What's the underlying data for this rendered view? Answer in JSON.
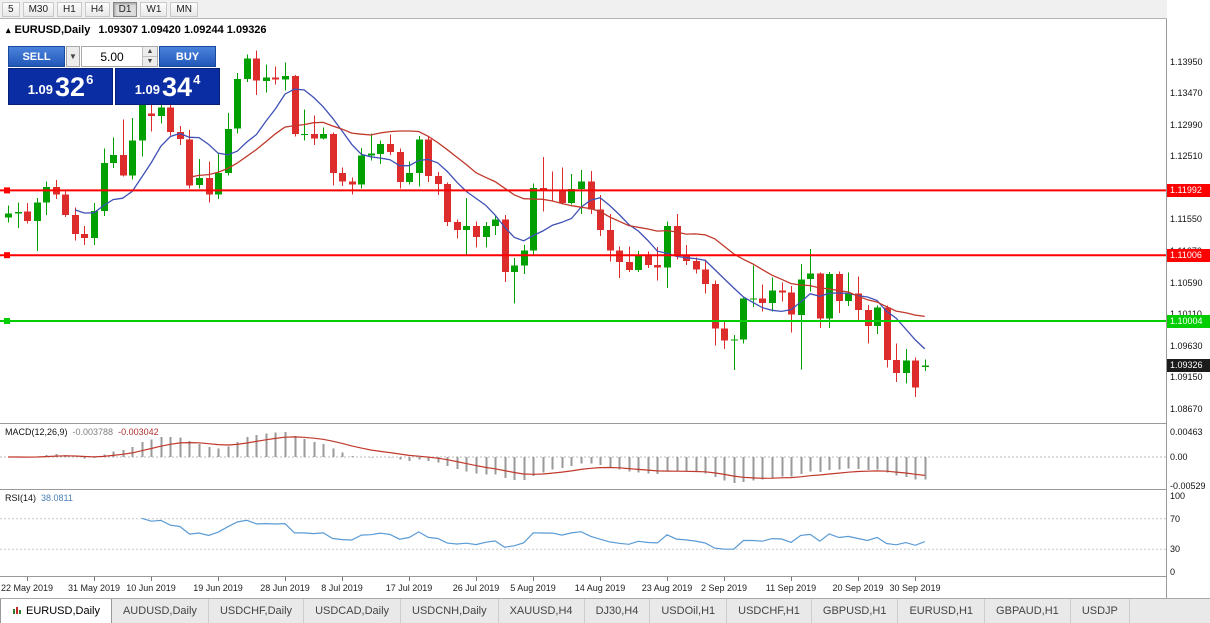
{
  "toolbar": {
    "timeframes": [
      "5",
      "M30",
      "H1",
      "H4",
      "D1",
      "W1",
      "MN"
    ],
    "active": "D1"
  },
  "chart": {
    "collapse_arrow": "▴",
    "symbol_period": "EURUSD,Daily",
    "ohlc": "1.09307 1.09420 1.09244 1.09326"
  },
  "trade_panel": {
    "sell_label": "SELL",
    "buy_label": "BUY",
    "volume": "5.00",
    "sell_price_base": "1.09",
    "sell_price_pips": "32",
    "sell_price_pipette": "6",
    "buy_price_base": "1.09",
    "buy_price_pips": "34",
    "buy_price_pipette": "4",
    "button_color": "#2a65c7",
    "panel_color": "#0b2da3"
  },
  "macd": {
    "name": "MACD(12,26,9)",
    "value1": "-0.003788",
    "value2": "-0.003042",
    "axis": [
      {
        "text": "0.00463",
        "value": 0.00463
      },
      {
        "text": "0.00",
        "value": 0
      },
      {
        "text": "-0.00529",
        "value": -0.00529
      }
    ]
  },
  "rsi": {
    "name": "RSI(14)",
    "value": "38.0811",
    "axis": [
      {
        "text": "100",
        "value": 100
      },
      {
        "text": "70",
        "value": 70
      },
      {
        "text": "30",
        "value": 30
      },
      {
        "text": "0",
        "value": 0
      }
    ]
  },
  "price_axis": {
    "labels": [
      "1.13950",
      "1.13470",
      "1.12990",
      "1.12510",
      "1.12030",
      "1.11550",
      "1.11070",
      "1.10590",
      "1.10110",
      "1.09630",
      "1.09150",
      "1.08670"
    ],
    "badges": [
      {
        "text": "1.11992",
        "bg": "#ff0000",
        "fg": "#ffffff"
      },
      {
        "text": "1.11006",
        "bg": "#ff0000",
        "fg": "#ffffff"
      },
      {
        "text": "1.10004",
        "bg": "#00ce00",
        "fg": "#ffffff"
      },
      {
        "text": "1.09326",
        "bg": "#1c1c1c",
        "fg": "#ffffff"
      }
    ]
  },
  "tabs": [
    "EURUSD,Daily",
    "AUDUSD,Daily",
    "USDCHF,Daily",
    "USDCAD,Daily",
    "USDCNH,Daily",
    "XAUUSD,H4",
    "DJ30,H4",
    "USDOil,H1",
    "USDCHF,H1",
    "GBPUSD,H1",
    "EURUSD,H1",
    "GBPAUD,H1",
    "USDJP"
  ],
  "chart_data": {
    "type": "candlestick",
    "symbol": "EURUSD",
    "timeframe": "Daily",
    "title": "EURUSD,Daily",
    "ylim": [
      1.0843,
      1.146
    ],
    "grid": false,
    "colors": {
      "bull": "#00a000",
      "bear": "#dd2c2c"
    },
    "moving_averages": [
      {
        "period": 8,
        "color": "#3f51b5"
      },
      {
        "period": 20,
        "color": "#c0392b"
      }
    ],
    "hlines": [
      {
        "price": 1.11992,
        "color": "#ff0000"
      },
      {
        "price": 1.11006,
        "color": "#ff0000"
      },
      {
        "price": 1.10004,
        "color": "#00ce00"
      }
    ],
    "current_price": 1.09326,
    "indicators": [
      {
        "name": "MACD",
        "params": [
          12,
          26,
          9
        ],
        "values": [
          -0.003788,
          -0.003042
        ],
        "range": [
          -0.00529,
          0.00463
        ]
      },
      {
        "name": "RSI",
        "params": [
          14
        ],
        "value": 38.0811,
        "levels": [
          30,
          70
        ],
        "range": [
          0,
          100
        ]
      }
    ],
    "date_ticks": [
      {
        "i": 2,
        "label": "22 May 2019"
      },
      {
        "i": 9,
        "label": "31 May 2019"
      },
      {
        "i": 15,
        "label": "10 Jun 2019"
      },
      {
        "i": 22,
        "label": "19 Jun 2019"
      },
      {
        "i": 29,
        "label": "28 Jun 2019"
      },
      {
        "i": 35,
        "label": "8 Jul 2019"
      },
      {
        "i": 42,
        "label": "17 Jul 2019"
      },
      {
        "i": 49,
        "label": "26 Jul 2019"
      },
      {
        "i": 55,
        "label": "5 Aug 2019"
      },
      {
        "i": 62,
        "label": "14 Aug 2019"
      },
      {
        "i": 69,
        "label": "23 Aug 2019"
      },
      {
        "i": 75,
        "label": "2 Sep 2019"
      },
      {
        "i": 82,
        "label": "11 Sep 2019"
      },
      {
        "i": 89,
        "label": "20 Sep 2019"
      },
      {
        "i": 95,
        "label": "30 Sep 2019"
      }
    ],
    "candles": [
      [
        1.1158,
        1.1176,
        1.115,
        1.1164
      ],
      [
        1.1164,
        1.1181,
        1.1142,
        1.1166
      ],
      [
        1.1167,
        1.118,
        1.1149,
        1.1153
      ],
      [
        1.1153,
        1.1188,
        1.1107,
        1.1181
      ],
      [
        1.1181,
        1.1213,
        1.1162,
        1.1204
      ],
      [
        1.1204,
        1.1215,
        1.1186,
        1.1193
      ],
      [
        1.1193,
        1.1199,
        1.1159,
        1.1162
      ],
      [
        1.1162,
        1.1173,
        1.1123,
        1.1133
      ],
      [
        1.1133,
        1.1145,
        1.1116,
        1.1127
      ],
      [
        1.1127,
        1.118,
        1.1116,
        1.1168
      ],
      [
        1.1168,
        1.1263,
        1.116,
        1.1241
      ],
      [
        1.1241,
        1.128,
        1.1233,
        1.1253
      ],
      [
        1.1253,
        1.1307,
        1.122,
        1.1222
      ],
      [
        1.1222,
        1.1309,
        1.1216,
        1.1275
      ],
      [
        1.1275,
        1.1348,
        1.1251,
        1.1334
      ],
      [
        1.1316,
        1.1332,
        1.1289,
        1.1312
      ],
      [
        1.1312,
        1.1338,
        1.1301,
        1.1325
      ],
      [
        1.1325,
        1.1344,
        1.1283,
        1.1288
      ],
      [
        1.1288,
        1.1297,
        1.1268,
        1.1277
      ],
      [
        1.1277,
        1.1291,
        1.1202,
        1.1207
      ],
      [
        1.1207,
        1.1247,
        1.1202,
        1.1218
      ],
      [
        1.1218,
        1.1243,
        1.1181,
        1.1193
      ],
      [
        1.1193,
        1.1255,
        1.1186,
        1.1226
      ],
      [
        1.1226,
        1.1317,
        1.1222,
        1.1293
      ],
      [
        1.1293,
        1.1378,
        1.1286,
        1.1369
      ],
      [
        1.1369,
        1.1406,
        1.1364,
        1.14
      ],
      [
        1.14,
        1.1412,
        1.1344,
        1.1366
      ],
      [
        1.1366,
        1.1391,
        1.1348,
        1.1371
      ],
      [
        1.1371,
        1.1388,
        1.136,
        1.1368
      ],
      [
        1.1368,
        1.1394,
        1.1351,
        1.1373
      ],
      [
        1.1373,
        1.1375,
        1.1281,
        1.1285
      ],
      [
        1.1285,
        1.1322,
        1.1275,
        1.1285
      ],
      [
        1.1285,
        1.1313,
        1.1268,
        1.1278
      ],
      [
        1.1278,
        1.1295,
        1.1277,
        1.1285
      ],
      [
        1.1285,
        1.1287,
        1.1207,
        1.1226
      ],
      [
        1.1226,
        1.1234,
        1.1206,
        1.1213
      ],
      [
        1.1213,
        1.1219,
        1.1193,
        1.1208
      ],
      [
        1.1208,
        1.1264,
        1.1202,
        1.1252
      ],
      [
        1.1252,
        1.1286,
        1.1245,
        1.1255
      ],
      [
        1.1255,
        1.1275,
        1.1239,
        1.127
      ],
      [
        1.127,
        1.1284,
        1.1253,
        1.1258
      ],
      [
        1.1258,
        1.1263,
        1.1202,
        1.1212
      ],
      [
        1.1212,
        1.1243,
        1.1208,
        1.1226
      ],
      [
        1.1226,
        1.1282,
        1.1205,
        1.1277
      ],
      [
        1.1277,
        1.1282,
        1.1212,
        1.1221
      ],
      [
        1.1221,
        1.1227,
        1.1192,
        1.1209
      ],
      [
        1.1209,
        1.1211,
        1.1145,
        1.1151
      ],
      [
        1.1151,
        1.1155,
        1.1126,
        1.1139
      ],
      [
        1.1139,
        1.1188,
        1.1101,
        1.1145
      ],
      [
        1.1145,
        1.1152,
        1.1112,
        1.1128
      ],
      [
        1.1128,
        1.1151,
        1.1112,
        1.1145
      ],
      [
        1.1145,
        1.1162,
        1.1131,
        1.1155
      ],
      [
        1.1155,
        1.1162,
        1.106,
        1.1075
      ],
      [
        1.1075,
        1.1096,
        1.1027,
        1.1085
      ],
      [
        1.1085,
        1.1116,
        1.1072,
        1.1108
      ],
      [
        1.1108,
        1.121,
        1.1101,
        1.1203
      ],
      [
        1.1203,
        1.125,
        1.1167,
        1.12
      ],
      [
        1.12,
        1.1228,
        1.1183,
        1.1199
      ],
      [
        1.1199,
        1.1234,
        1.1178,
        1.118
      ],
      [
        1.118,
        1.1224,
        1.1178,
        1.1201
      ],
      [
        1.1201,
        1.123,
        1.1163,
        1.1213
      ],
      [
        1.1213,
        1.1229,
        1.1163,
        1.117
      ],
      [
        1.117,
        1.1192,
        1.113,
        1.1139
      ],
      [
        1.1139,
        1.1163,
        1.1091,
        1.1108
      ],
      [
        1.1108,
        1.1114,
        1.1066,
        1.109
      ],
      [
        1.109,
        1.1114,
        1.1075,
        1.1078
      ],
      [
        1.1078,
        1.1107,
        1.1075,
        1.11
      ],
      [
        1.11,
        1.1106,
        1.1081,
        1.1086
      ],
      [
        1.1086,
        1.1113,
        1.1062,
        1.1082
      ],
      [
        1.1082,
        1.1152,
        1.1051,
        1.1145
      ],
      [
        1.1145,
        1.1163,
        1.1094,
        1.1101
      ],
      [
        1.1101,
        1.1116,
        1.1086,
        1.1092
      ],
      [
        1.1092,
        1.1097,
        1.1073,
        1.1079
      ],
      [
        1.1079,
        1.1094,
        1.1042,
        1.1057
      ],
      [
        1.1057,
        1.1062,
        1.0963,
        1.0989
      ],
      [
        1.0989,
        1.0999,
        1.0958,
        1.0971
      ],
      [
        1.0971,
        1.0979,
        1.0926,
        1.0972
      ],
      [
        1.0972,
        1.1037,
        1.0966,
        1.1035
      ],
      [
        1.1035,
        1.1085,
        1.1022,
        1.1035
      ],
      [
        1.1035,
        1.1056,
        1.1015,
        1.1028
      ],
      [
        1.1028,
        1.1067,
        1.1015,
        1.1047
      ],
      [
        1.1047,
        1.1059,
        1.103,
        1.1044
      ],
      [
        1.1044,
        1.1054,
        1.0983,
        1.101
      ],
      [
        1.101,
        1.1087,
        1.0927,
        1.1064
      ],
      [
        1.1064,
        1.111,
        1.1045,
        1.1073
      ],
      [
        1.1073,
        1.1074,
        1.099,
        1.1004
      ],
      [
        1.1004,
        1.1075,
        1.099,
        1.1072
      ],
      [
        1.1072,
        1.1076,
        1.1013,
        1.1031
      ],
      [
        1.1031,
        1.1074,
        1.1023,
        1.1042
      ],
      [
        1.1042,
        1.1068,
        1.1,
        1.1017
      ],
      [
        1.1017,
        1.1025,
        1.0966,
        1.0993
      ],
      [
        1.0993,
        1.1024,
        1.0981,
        1.1021
      ],
      [
        1.1021,
        1.1024,
        1.093,
        1.0941
      ],
      [
        1.0941,
        1.0966,
        1.0908,
        1.0921
      ],
      [
        1.0921,
        1.0958,
        1.0905,
        1.094
      ],
      [
        1.094,
        1.0945,
        1.0885,
        1.0899
      ],
      [
        1.09307,
        1.0942,
        1.09244,
        1.09326
      ]
    ]
  }
}
